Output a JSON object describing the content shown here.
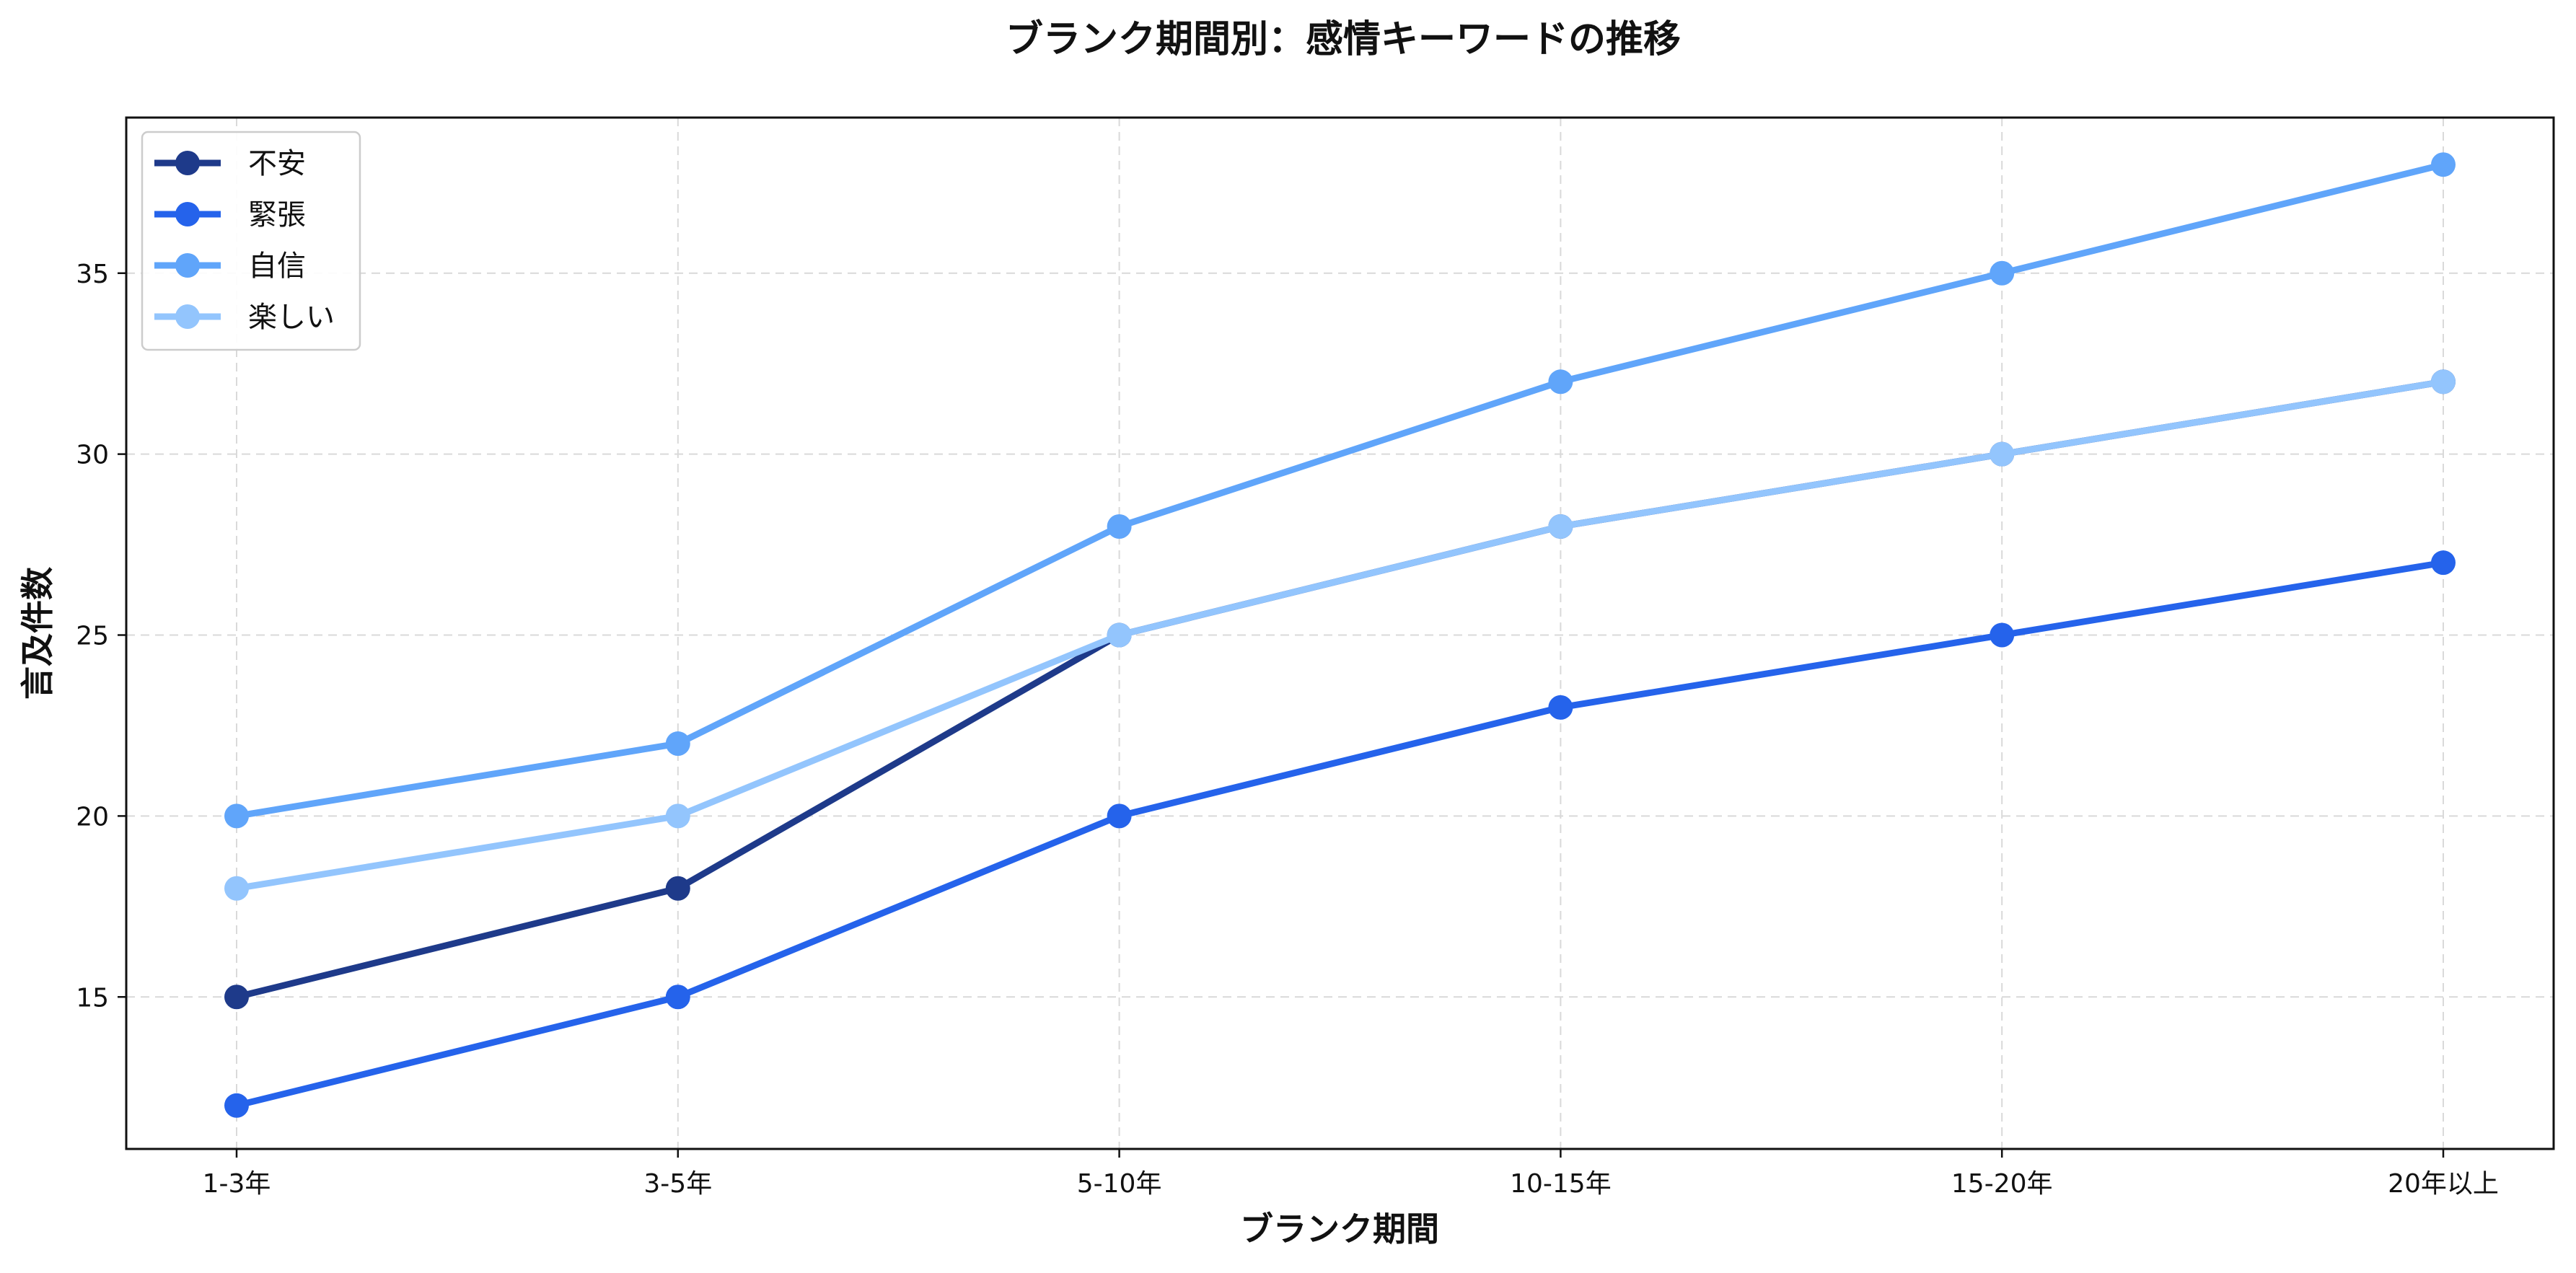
{
  "chart_data": {
    "type": "line",
    "title": "ブランク期間別：感情キーワードの推移",
    "xlabel": "ブランク期間",
    "ylabel": "言及件数",
    "categories": [
      "1-3年",
      "3-5年",
      "5-10年",
      "10-15年",
      "15-20年",
      "20年以上"
    ],
    "ylim": [
      10.8,
      39.3
    ],
    "yticks": [
      15,
      20,
      25,
      30,
      35
    ],
    "grid": true,
    "legend_position": "top-left",
    "series": [
      {
        "name": "不安",
        "color": "#1e3a8a",
        "values": [
          15,
          18,
          25,
          28,
          30,
          32
        ]
      },
      {
        "name": "緊張",
        "color": "#2563eb",
        "values": [
          12,
          15,
          20,
          23,
          25,
          27
        ]
      },
      {
        "name": "自信",
        "color": "#60a5fa",
        "values": [
          20,
          22,
          28,
          32,
          35,
          38
        ]
      },
      {
        "name": "楽しい",
        "color": "#93c5fd",
        "values": [
          18,
          20,
          25,
          28,
          30,
          32
        ]
      }
    ]
  }
}
